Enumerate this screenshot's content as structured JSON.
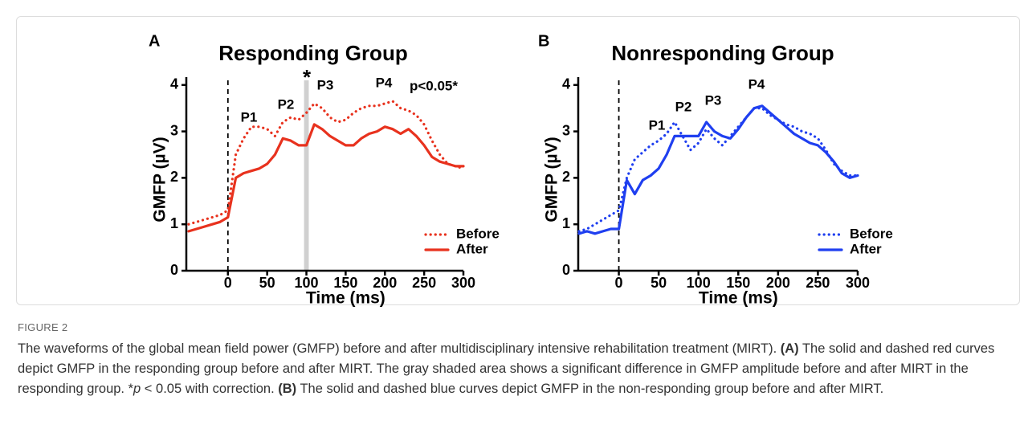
{
  "chart_data": [
    {
      "type": "line",
      "panel": "A",
      "title": "Responding Group",
      "x_label": "Time (ms)",
      "y_label": "GMFP (µV)",
      "x": [
        -50,
        -40,
        -30,
        -20,
        -10,
        0,
        10,
        20,
        30,
        40,
        50,
        60,
        70,
        80,
        90,
        100,
        110,
        120,
        130,
        140,
        150,
        160,
        170,
        180,
        190,
        200,
        210,
        220,
        230,
        240,
        250,
        260,
        270,
        280,
        290,
        300
      ],
      "series": [
        {
          "name": "Before",
          "color": "#e8321e",
          "style": "dotted",
          "values": [
            1.0,
            1.05,
            1.1,
            1.15,
            1.2,
            1.3,
            2.5,
            2.85,
            3.1,
            3.1,
            3.05,
            2.9,
            3.2,
            3.3,
            3.25,
            3.4,
            3.6,
            3.5,
            3.3,
            3.2,
            3.25,
            3.4,
            3.5,
            3.55,
            3.55,
            3.6,
            3.65,
            3.5,
            3.45,
            3.35,
            3.15,
            2.8,
            2.5,
            2.3,
            2.25,
            2.2
          ]
        },
        {
          "name": "After",
          "color": "#e8321e",
          "style": "solid",
          "values": [
            0.85,
            0.9,
            0.95,
            1.0,
            1.05,
            1.15,
            2.0,
            2.1,
            2.15,
            2.2,
            2.3,
            2.5,
            2.85,
            2.8,
            2.7,
            2.7,
            3.15,
            3.05,
            2.9,
            2.8,
            2.7,
            2.7,
            2.85,
            2.95,
            3.0,
            3.1,
            3.05,
            2.95,
            3.05,
            2.9,
            2.7,
            2.45,
            2.35,
            2.3,
            2.25,
            2.25
          ]
        }
      ],
      "xlim": [
        -53,
        300
      ],
      "xticks": [
        0,
        50,
        100,
        150,
        200,
        250,
        300
      ],
      "ylim": [
        0,
        4.1
      ],
      "yticks": [
        0,
        1,
        2,
        3,
        4
      ],
      "onset_x": 0,
      "highlight_x": [
        97,
        103
      ],
      "annotations": [
        "P1",
        "P2",
        "P3",
        "P4",
        "p<0.05*",
        "*"
      ]
    },
    {
      "type": "line",
      "panel": "B",
      "title": "Nonresponding Group",
      "x_label": "Time (ms)",
      "y_label": "GMFP (µV)",
      "x": [
        -50,
        -40,
        -30,
        -20,
        -10,
        0,
        10,
        20,
        30,
        40,
        50,
        60,
        70,
        80,
        90,
        100,
        110,
        120,
        130,
        140,
        150,
        160,
        170,
        180,
        190,
        200,
        210,
        220,
        230,
        240,
        250,
        260,
        270,
        280,
        290,
        300
      ],
      "series": [
        {
          "name": "Before",
          "color": "#1f3ff0",
          "style": "dotted",
          "values": [
            0.85,
            0.9,
            1.0,
            1.1,
            1.2,
            1.3,
            2.0,
            2.4,
            2.55,
            2.7,
            2.8,
            2.95,
            3.2,
            2.9,
            2.6,
            2.75,
            3.05,
            2.85,
            2.7,
            2.9,
            3.1,
            3.3,
            3.5,
            3.5,
            3.35,
            3.25,
            3.15,
            3.1,
            3.0,
            2.95,
            2.85,
            2.6,
            2.3,
            2.15,
            2.05,
            2.05
          ]
        },
        {
          "name": "After",
          "color": "#1f3ff0",
          "style": "solid",
          "values": [
            0.8,
            0.85,
            0.8,
            0.85,
            0.9,
            0.9,
            1.95,
            1.65,
            1.95,
            2.05,
            2.2,
            2.5,
            2.9,
            2.9,
            2.9,
            2.9,
            3.2,
            3.0,
            2.9,
            2.85,
            3.05,
            3.3,
            3.5,
            3.55,
            3.4,
            3.25,
            3.1,
            2.95,
            2.85,
            2.75,
            2.7,
            2.55,
            2.35,
            2.1,
            2.0,
            2.05
          ]
        }
      ],
      "xlim": [
        -51,
        300
      ],
      "xticks": [
        0,
        50,
        100,
        150,
        200,
        250,
        300
      ],
      "ylim": [
        0,
        4.1
      ],
      "yticks": [
        0,
        1,
        2,
        3,
        4
      ],
      "onset_x": 0,
      "annotations": [
        "P1",
        "P2",
        "P3",
        "P4"
      ]
    }
  ],
  "figure": {
    "label": "FIGURE 2",
    "caption": [
      {
        "text": "The waveforms of the global mean field power (GMFP) before and after multidisciplinary intensive rehabilitation treatment (MIRT). "
      },
      {
        "text": "(A)",
        "bold": true
      },
      {
        "text": " The solid and dashed red curves depict GMFP in the responding group before and after MIRT. The gray shaded area shows a significant difference in GMFP amplitude before and after MIRT in the responding group. *"
      },
      {
        "text": "p",
        "italic": true
      },
      {
        "text": " < 0.05 with correction. "
      },
      {
        "text": "(B)",
        "bold": true
      },
      {
        "text": " The solid and dashed blue curves depict GMFP in the non-responding group before and after MIRT."
      }
    ]
  }
}
